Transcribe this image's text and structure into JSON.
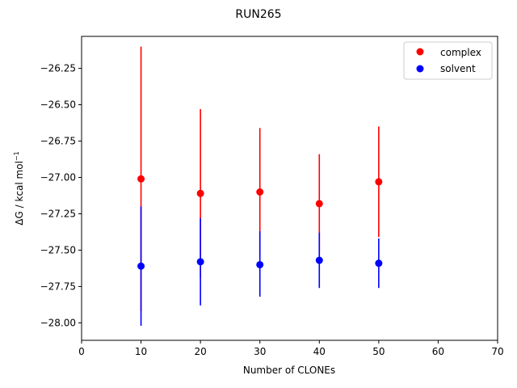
{
  "chart_data": {
    "type": "scatter",
    "title": "RUN265",
    "xlabel": "Number of CLONEs",
    "ylabel_main": "ΔG / kcal mol",
    "ylabel_sup": "−1",
    "xlim": [
      0,
      70
    ],
    "ylim": [
      -28.12,
      -26.03
    ],
    "xticks": [
      0,
      10,
      20,
      30,
      40,
      50,
      60,
      70
    ],
    "xtick_labels": [
      "0",
      "10",
      "20",
      "30",
      "40",
      "50",
      "60",
      "70"
    ],
    "yticks": [
      -28.0,
      -27.75,
      -27.5,
      -27.25,
      -27.0,
      -26.75,
      -26.5,
      -26.25
    ],
    "ytick_labels": [
      "−28.00",
      "−27.75",
      "−27.50",
      "−27.25",
      "−27.00",
      "−26.75",
      "−26.50",
      "−26.25"
    ],
    "grid": false,
    "legend_position": "top-right",
    "series": [
      {
        "name": "complex",
        "color": "#ff0000",
        "x": [
          10,
          20,
          30,
          40,
          50
        ],
        "y": [
          -27.01,
          -27.11,
          -27.1,
          -27.18,
          -27.03
        ],
        "err_low": [
          -27.92,
          -27.69,
          -27.54,
          -27.52,
          -27.41
        ],
        "err_high": [
          -26.1,
          -26.53,
          -26.66,
          -26.84,
          -26.65
        ]
      },
      {
        "name": "solvent",
        "color": "#0000ff",
        "x": [
          10,
          20,
          30,
          40,
          50
        ],
        "y": [
          -27.61,
          -27.58,
          -27.6,
          -27.57,
          -27.59
        ],
        "err_low": [
          -28.02,
          -27.88,
          -27.82,
          -27.76,
          -27.76
        ],
        "err_high": [
          -27.2,
          -27.28,
          -27.37,
          -27.38,
          -27.42
        ]
      }
    ]
  }
}
